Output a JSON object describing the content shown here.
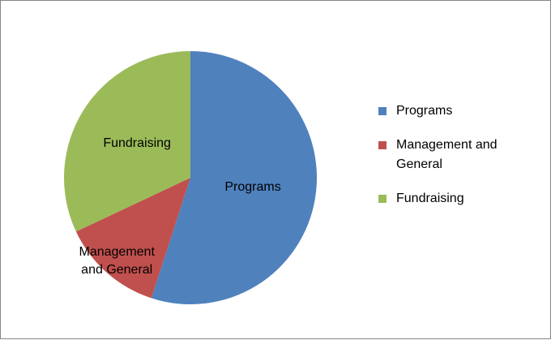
{
  "chart_data": {
    "type": "pie",
    "categories": [
      "Programs",
      "Management and General",
      "Fundraising"
    ],
    "values": [
      55,
      13,
      32
    ],
    "colors": [
      "#4f81bd",
      "#c0504d",
      "#9bbb59"
    ],
    "legend": "right"
  }
}
